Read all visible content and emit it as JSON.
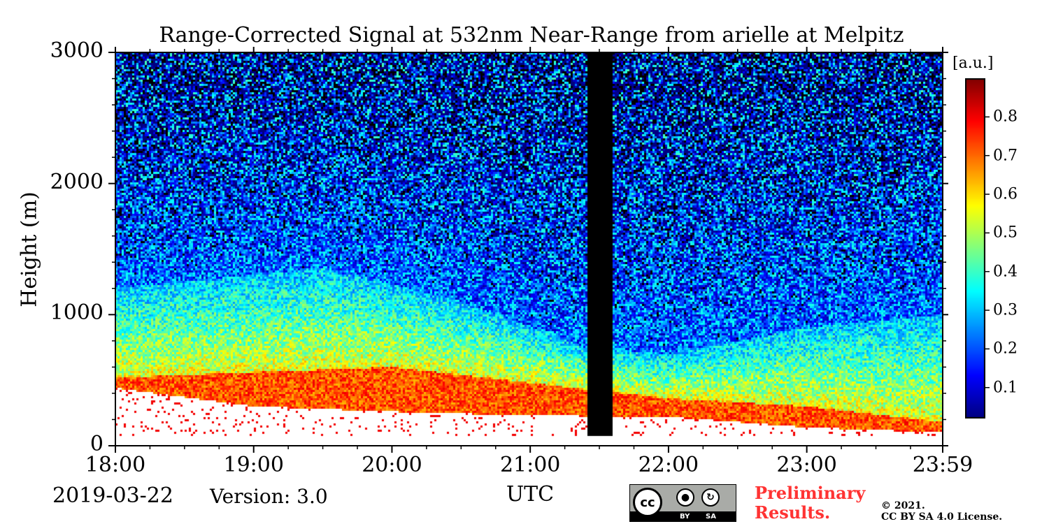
{
  "chart_data": {
    "type": "heatmap",
    "title": "Range-Corrected Signal at 532nm Near-Range from arielle at Melpitz",
    "ylabel": "Height (m)",
    "xlabel": "UTC",
    "x_tick_labels": [
      "18:00",
      "19:00",
      "20:00",
      "21:00",
      "22:00",
      "23:00",
      "23:59"
    ],
    "x_tick_values_hours": [
      18.0,
      19.0,
      20.0,
      21.0,
      22.0,
      23.0,
      23.983
    ],
    "xlim_hours": [
      18.0,
      23.983
    ],
    "y_tick_labels": [
      "0",
      "1000",
      "2000",
      "3000"
    ],
    "y_tick_values": [
      0,
      1000,
      2000,
      3000
    ],
    "ylim": [
      0,
      3000
    ],
    "colorbar": {
      "label": "[a.u.]",
      "colormap": "jet",
      "range": [
        0.02,
        0.9
      ],
      "tick_labels": [
        "0.1",
        "0.2",
        "0.3",
        "0.4",
        "0.5",
        "0.6",
        "0.7",
        "0.8"
      ],
      "tick_values": [
        0.1,
        0.2,
        0.3,
        0.4,
        0.5,
        0.6,
        0.7,
        0.8
      ]
    },
    "data_gap_hours": [
      21.42,
      21.6
    ],
    "features": {
      "aerosol_layer_top_m": [
        {
          "time": 18.0,
          "height": 1200
        },
        {
          "time": 19.5,
          "height": 1350
        },
        {
          "time": 20.5,
          "height": 1100
        },
        {
          "time": 21.4,
          "height": 750
        },
        {
          "time": 22.0,
          "height": 700
        },
        {
          "time": 23.0,
          "height": 900
        },
        {
          "time": 23.98,
          "height": 1000
        }
      ],
      "strong_layer_top_m": [
        {
          "time": 18.0,
          "height": 520
        },
        {
          "time": 19.0,
          "height": 560
        },
        {
          "time": 20.0,
          "height": 600
        },
        {
          "time": 21.0,
          "height": 480
        },
        {
          "time": 21.4,
          "height": 430
        },
        {
          "time": 22.0,
          "height": 360
        },
        {
          "time": 23.0,
          "height": 300
        },
        {
          "time": 23.98,
          "height": 180
        }
      ],
      "overlap_region_top_m": [
        {
          "time": 18.0,
          "height": 440
        },
        {
          "time": 19.0,
          "height": 300
        },
        {
          "time": 20.0,
          "height": 260
        },
        {
          "time": 21.0,
          "height": 230
        },
        {
          "time": 22.0,
          "height": 220
        },
        {
          "time": 23.0,
          "height": 140
        },
        {
          "time": 23.98,
          "height": 100
        }
      ]
    }
  },
  "footer": {
    "date": "2019-03-22",
    "version": "Version: 3.0",
    "preliminary": "Preliminary\nResults.",
    "copyright": "©  2021.\nCC BY SA 4.0 License."
  },
  "license_badge": {
    "cc": "cc",
    "by": "BY",
    "sa": "SA"
  }
}
